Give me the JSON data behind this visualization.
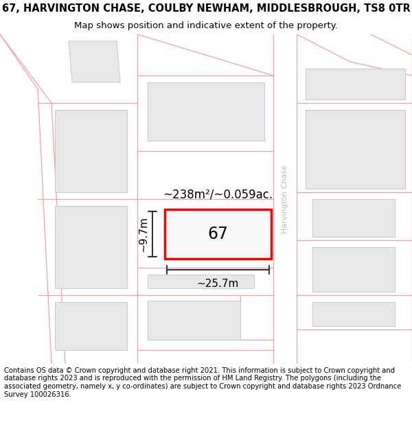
{
  "title_line1": "67, HARVINGTON CHASE, COULBY NEWHAM, MIDDLESBROUGH, TS8 0TR",
  "title_line2": "Map shows position and indicative extent of the property.",
  "footer_text": "Contains OS data © Crown copyright and database right 2021. This information is subject to Crown copyright and database rights 2023 and is reproduced with the permission of HM Land Registry. The polygons (including the associated geometry, namely x, y co-ordinates) are subject to Crown copyright and database rights 2023 Ordnance Survey 100026316.",
  "background_color": "#ffffff",
  "road_line_color": "#f0a0a0",
  "building_fill": "#e8e8e8",
  "building_edge": "#cccccc",
  "subject_fill": "#f0f0f0",
  "subject_edge": "#ff0000",
  "street_label": "Harvington Chase",
  "area_label": "~238m²/~0.059ac.",
  "property_label": "67",
  "dim_width": "~25.7m",
  "dim_height": "~9.7m",
  "title_fontsize": 10.5,
  "subtitle_fontsize": 9.5,
  "footer_fontsize": 7.2
}
